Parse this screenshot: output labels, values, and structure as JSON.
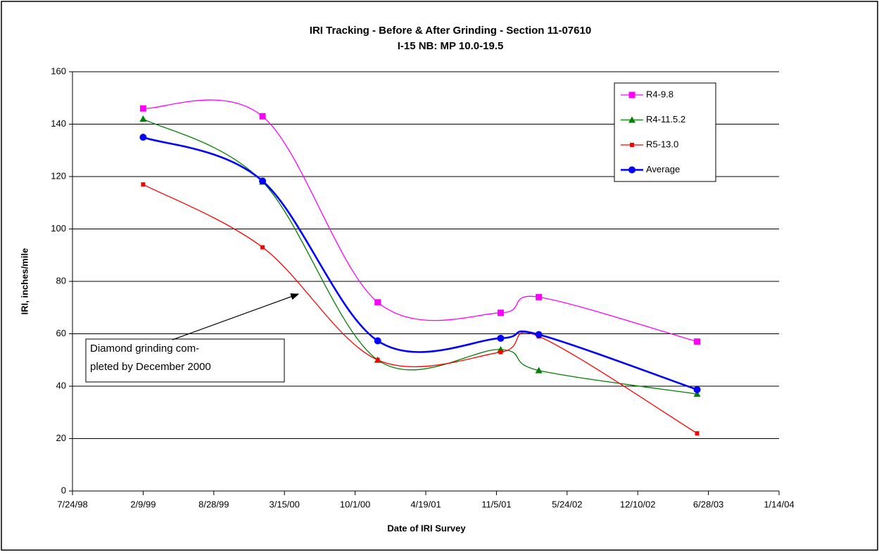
{
  "chart_data": {
    "type": "line",
    "title": "IRI Tracking - Before & After Grinding - Section 11-07610",
    "subtitle": "I-15 NB: MP 10.0-19.5",
    "x_label": "Date of IRI Survey",
    "y_label": "IRI, inches/mile",
    "x": [
      "2/9/99",
      "1/13/00",
      "12/4/00",
      "11/17/01",
      "3/5/02",
      "5/27/03"
    ],
    "series": [
      {
        "name": "R4-9.8",
        "color": "#ff00ff",
        "values": [
          146,
          143,
          72,
          68,
          74,
          57
        ]
      },
      {
        "name": "R4-11.5.2",
        "color": "#008000",
        "values": [
          142,
          118,
          50,
          54,
          46,
          37
        ]
      },
      {
        "name": "R5-13.0",
        "color": "#ff0000",
        "values": [
          117,
          93,
          50,
          53,
          59,
          22
        ]
      },
      {
        "name": "Average",
        "color": "#0000ff",
        "values": [
          135,
          118.3,
          57.3,
          58.3,
          59.7,
          38.7
        ]
      }
    ],
    "xlim": [
      "7/24/98",
      "1/14/04"
    ],
    "xticks": [
      "7/24/98",
      "2/9/99",
      "8/28/99",
      "3/15/00",
      "10/1/00",
      "4/19/01",
      "11/5/01",
      "5/24/02",
      "12/10/02",
      "6/28/03",
      "1/14/04"
    ],
    "ylim": [
      0,
      160
    ],
    "yticks": [
      0,
      20,
      40,
      60,
      80,
      100,
      120,
      140,
      160
    ],
    "grid": true,
    "legend": "upper right",
    "annotation": [
      "Diamond grinding com-",
      "pleted by December 2000"
    ]
  }
}
